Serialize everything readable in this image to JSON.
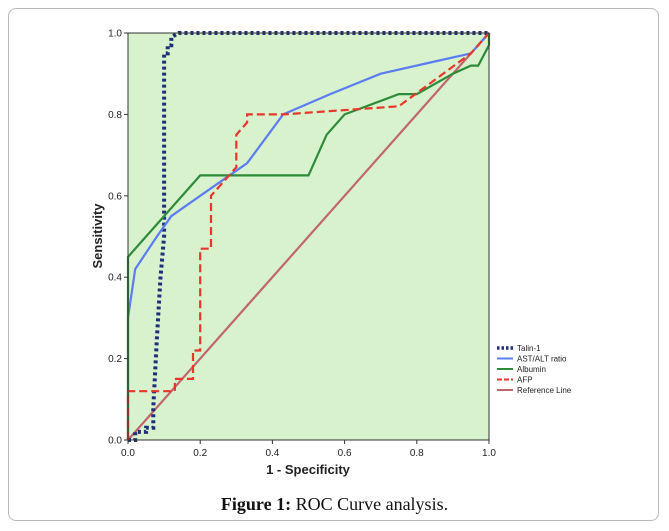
{
  "caption": {
    "label": "Figure 1:",
    "text": "ROC Curve analysis."
  },
  "chart_data": {
    "type": "line",
    "xlabel": "1 - Specificity",
    "ylabel": "Sensitivity",
    "xlim": [
      0,
      1
    ],
    "ylim": [
      0,
      1
    ],
    "xticks": [
      "0.0",
      "0.2",
      "0.4",
      "0.6",
      "0.8",
      "1.0"
    ],
    "yticks": [
      "0.0",
      "0.2",
      "0.4",
      "0.6",
      "0.8",
      "1.0"
    ],
    "background_color": "#d7f2cc",
    "grid": false,
    "legend_position": "right",
    "series": [
      {
        "name": "Talin-1",
        "color": "#1f2f7a",
        "style": "dotted",
        "x": [
          0.0,
          0.02,
          0.02,
          0.05,
          0.05,
          0.07,
          0.07,
          0.08,
          0.09,
          0.1,
          0.1,
          0.11,
          0.11,
          0.12,
          0.12,
          0.14,
          1.0
        ],
        "y": [
          0.0,
          0.0,
          0.02,
          0.02,
          0.03,
          0.03,
          0.08,
          0.25,
          0.4,
          0.5,
          0.95,
          0.95,
          0.97,
          0.97,
          0.99,
          1.0,
          1.0
        ]
      },
      {
        "name": "AST/ALT ratio",
        "color": "#5b7cf2",
        "style": "solid",
        "x": [
          0.0,
          0.0,
          0.02,
          0.08,
          0.12,
          0.2,
          0.33,
          0.43,
          0.56,
          0.7,
          0.85,
          0.95,
          0.98,
          1.0
        ],
        "y": [
          0.0,
          0.3,
          0.42,
          0.5,
          0.55,
          0.6,
          0.68,
          0.8,
          0.85,
          0.9,
          0.93,
          0.95,
          0.98,
          1.0
        ]
      },
      {
        "name": "Albumin",
        "color": "#2e8b3a",
        "style": "solid",
        "x": [
          0.0,
          0.0,
          0.1,
          0.2,
          0.5,
          0.55,
          0.6,
          0.75,
          0.8,
          0.9,
          0.95,
          0.97,
          1.0,
          1.0
        ],
        "y": [
          0.0,
          0.45,
          0.55,
          0.65,
          0.65,
          0.75,
          0.8,
          0.85,
          0.85,
          0.9,
          0.92,
          0.92,
          0.97,
          1.0
        ]
      },
      {
        "name": "AFP",
        "color": "#e8362a",
        "style": "dashed",
        "x": [
          0.0,
          0.0,
          0.13,
          0.13,
          0.18,
          0.18,
          0.2,
          0.2,
          0.23,
          0.23,
          0.3,
          0.3,
          0.33,
          0.33,
          0.43,
          0.43,
          0.75,
          0.95,
          1.0
        ],
        "y": [
          0.0,
          0.12,
          0.12,
          0.15,
          0.15,
          0.22,
          0.22,
          0.47,
          0.47,
          0.6,
          0.67,
          0.75,
          0.78,
          0.8,
          0.8,
          0.8,
          0.82,
          0.95,
          1.0
        ]
      },
      {
        "name": "Reference Line",
        "color": "#c1666e",
        "style": "solid",
        "x": [
          0.0,
          1.0
        ],
        "y": [
          0.0,
          1.0
        ]
      }
    ]
  }
}
